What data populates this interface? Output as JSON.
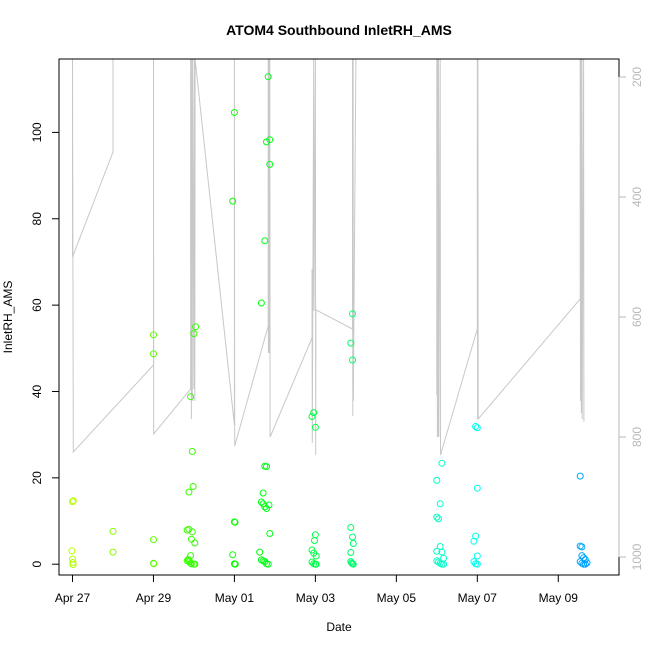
{
  "chart_data": {
    "type": "scatter",
    "title": "ATOM4 Southbound InletRH_AMS",
    "xlabel": "Date",
    "ylabel": "InletRH_AMS",
    "x_range": [
      "2017-04-26T16:00",
      "2017-05-10T12:00"
    ],
    "y_range": [
      -2.5,
      117
    ],
    "y_ticks": [
      0,
      20,
      40,
      60,
      80,
      100
    ],
    "x_ticks": [
      {
        "date": "2017-04-27",
        "label": "Apr 27"
      },
      {
        "date": "2017-04-29",
        "label": "Apr 29"
      },
      {
        "date": "2017-05-01",
        "label": "May 01"
      },
      {
        "date": "2017-05-03",
        "label": "May 03"
      },
      {
        "date": "2017-05-05",
        "label": "May 05"
      },
      {
        "date": "2017-05-07",
        "label": "May 07"
      },
      {
        "date": "2017-05-09",
        "label": "May 09"
      }
    ],
    "secondary_axis": {
      "range": [
        170,
        1030
      ],
      "inverted": true,
      "ticks": [
        200,
        400,
        600,
        800,
        1000
      ],
      "color": "#b8b8b8"
    },
    "grid": false,
    "color_scheme": "points colored by time, yellow-green to blue",
    "points": [
      {
        "x": "2017-04-27T00:00",
        "y": 14.5
      },
      {
        "x": "2017-04-27T00:30",
        "y": 14.7
      },
      {
        "x": "2017-04-26T23:40",
        "y": 3.1
      },
      {
        "x": "2017-04-27T00:00",
        "y": 1.2
      },
      {
        "x": "2017-04-27T00:15",
        "y": 0.4
      },
      {
        "x": "2017-04-27T00:20",
        "y": -0.1
      },
      {
        "x": "2017-04-28T00:00",
        "y": 7.6
      },
      {
        "x": "2017-04-28T00:00",
        "y": 2.8
      },
      {
        "x": "2017-04-29T00:00",
        "y": 53.1
      },
      {
        "x": "2017-04-29T00:00",
        "y": 48.7
      },
      {
        "x": "2017-04-29T00:00",
        "y": 5.7
      },
      {
        "x": "2017-04-29T00:00",
        "y": 0.2
      },
      {
        "x": "2017-04-29T00:10",
        "y": 0.1
      },
      {
        "x": "2017-04-29T20:00",
        "y": 7.9
      },
      {
        "x": "2017-04-29T21:00",
        "y": 8.1
      },
      {
        "x": "2017-04-29T22:00",
        "y": 38.8
      },
      {
        "x": "2017-04-29T21:00",
        "y": 16.7
      },
      {
        "x": "2017-04-29T23:00",
        "y": 26.1
      },
      {
        "x": "2017-04-29T23:30",
        "y": 18.0
      },
      {
        "x": "2017-04-30T00:00",
        "y": 53.4
      },
      {
        "x": "2017-04-30T01:00",
        "y": 55.0
      },
      {
        "x": "2017-04-29T22:30",
        "y": 5.8
      },
      {
        "x": "2017-04-29T23:00",
        "y": 7.5
      },
      {
        "x": "2017-04-30T00:30",
        "y": 4.9
      },
      {
        "x": "2017-04-29T22:00",
        "y": 2.0
      },
      {
        "x": "2017-04-29T20:00",
        "y": 0.8
      },
      {
        "x": "2017-04-29T20:30",
        "y": 1.1
      },
      {
        "x": "2017-04-29T21:00",
        "y": 0.9
      },
      {
        "x": "2017-04-29T21:30",
        "y": 0.6
      },
      {
        "x": "2017-04-29T22:00",
        "y": 0.2
      },
      {
        "x": "2017-04-29T22:30",
        "y": 0.1
      },
      {
        "x": "2017-04-30T00:00",
        "y": 0.0
      },
      {
        "x": "2017-04-30T00:30",
        "y": 0.0
      },
      {
        "x": "2017-05-01T00:00",
        "y": 104.6
      },
      {
        "x": "2017-04-30T23:00",
        "y": 84.1
      },
      {
        "x": "2017-05-01T00:00",
        "y": 9.8
      },
      {
        "x": "2017-05-01T00:20",
        "y": 9.7
      },
      {
        "x": "2017-04-30T23:00",
        "y": 2.2
      },
      {
        "x": "2017-05-01T00:00",
        "y": 0.1
      },
      {
        "x": "2017-05-01T00:15",
        "y": 0.0
      },
      {
        "x": "2017-05-01T00:30",
        "y": 0.0
      },
      {
        "x": "2017-05-01T20:00",
        "y": 112.9
      },
      {
        "x": "2017-05-01T21:00",
        "y": 98.3
      },
      {
        "x": "2017-05-01T19:00",
        "y": 97.8
      },
      {
        "x": "2017-05-01T21:00",
        "y": 92.6
      },
      {
        "x": "2017-05-01T18:00",
        "y": 74.9
      },
      {
        "x": "2017-05-01T16:00",
        "y": 60.5
      },
      {
        "x": "2017-05-01T18:00",
        "y": 22.7
      },
      {
        "x": "2017-05-01T19:00",
        "y": 22.6
      },
      {
        "x": "2017-05-01T17:00",
        "y": 16.5
      },
      {
        "x": "2017-05-01T16:00",
        "y": 14.4
      },
      {
        "x": "2017-05-01T17:00",
        "y": 14.0
      },
      {
        "x": "2017-05-01T18:00",
        "y": 13.3
      },
      {
        "x": "2017-05-01T19:00",
        "y": 12.9
      },
      {
        "x": "2017-05-01T20:30",
        "y": 13.7
      },
      {
        "x": "2017-05-01T21:00",
        "y": 7.1
      },
      {
        "x": "2017-05-01T15:00",
        "y": 2.8
      },
      {
        "x": "2017-05-01T16:00",
        "y": 1.0
      },
      {
        "x": "2017-05-01T17:00",
        "y": 0.8
      },
      {
        "x": "2017-05-01T18:00",
        "y": 0.6
      },
      {
        "x": "2017-05-01T19:00",
        "y": 0.1
      },
      {
        "x": "2017-05-01T20:00",
        "y": 0.0
      },
      {
        "x": "2017-05-02T22:00",
        "y": 34.2
      },
      {
        "x": "2017-05-02T23:00",
        "y": 35.1
      },
      {
        "x": "2017-05-03T00:00",
        "y": 31.7
      },
      {
        "x": "2017-05-03T00:00",
        "y": 6.8
      },
      {
        "x": "2017-05-02T23:30",
        "y": 5.5
      },
      {
        "x": "2017-05-02T22:00",
        "y": 3.3
      },
      {
        "x": "2017-05-02T23:00",
        "y": 2.6
      },
      {
        "x": "2017-05-03T00:30",
        "y": 1.9
      },
      {
        "x": "2017-05-02T22:00",
        "y": 0.5
      },
      {
        "x": "2017-05-02T23:00",
        "y": 0.1
      },
      {
        "x": "2017-05-03T00:00",
        "y": 0.0
      },
      {
        "x": "2017-05-03T00:30",
        "y": 0.0
      },
      {
        "x": "2017-05-03T22:00",
        "y": 58.0
      },
      {
        "x": "2017-05-03T21:00",
        "y": 51.2
      },
      {
        "x": "2017-05-03T22:00",
        "y": 47.3
      },
      {
        "x": "2017-05-03T21:00",
        "y": 8.5
      },
      {
        "x": "2017-05-03T22:00",
        "y": 6.3
      },
      {
        "x": "2017-05-03T22:30",
        "y": 4.8
      },
      {
        "x": "2017-05-03T21:00",
        "y": 2.7
      },
      {
        "x": "2017-05-03T21:00",
        "y": 0.6
      },
      {
        "x": "2017-05-03T21:30",
        "y": 0.3
      },
      {
        "x": "2017-05-03T22:00",
        "y": 0.1
      },
      {
        "x": "2017-05-03T22:30",
        "y": 0.0
      },
      {
        "x": "2017-05-06T03:00",
        "y": 23.4
      },
      {
        "x": "2017-05-06T00:00",
        "y": 19.4
      },
      {
        "x": "2017-05-06T02:00",
        "y": 14.0
      },
      {
        "x": "2017-05-06T00:00",
        "y": 10.9
      },
      {
        "x": "2017-05-06T01:00",
        "y": 10.5
      },
      {
        "x": "2017-05-06T02:00",
        "y": 4.1
      },
      {
        "x": "2017-05-06T00:00",
        "y": 3.0
      },
      {
        "x": "2017-05-06T03:00",
        "y": 2.8
      },
      {
        "x": "2017-05-06T04:00",
        "y": 1.4
      },
      {
        "x": "2017-05-06T00:00",
        "y": 0.8
      },
      {
        "x": "2017-05-06T01:00",
        "y": 0.5
      },
      {
        "x": "2017-05-06T02:00",
        "y": 0.2
      },
      {
        "x": "2017-05-06T03:00",
        "y": 0.0
      },
      {
        "x": "2017-05-06T04:00",
        "y": 0.0
      },
      {
        "x": "2017-05-06T23:00",
        "y": 31.9
      },
      {
        "x": "2017-05-07T00:00",
        "y": 31.6
      },
      {
        "x": "2017-05-07T00:00",
        "y": 17.6
      },
      {
        "x": "2017-05-06T23:00",
        "y": 6.5
      },
      {
        "x": "2017-05-06T22:00",
        "y": 5.3
      },
      {
        "x": "2017-05-07T00:00",
        "y": 1.9
      },
      {
        "x": "2017-05-06T22:00",
        "y": 0.6
      },
      {
        "x": "2017-05-06T23:00",
        "y": 0.1
      },
      {
        "x": "2017-05-07T00:00",
        "y": 0.0
      },
      {
        "x": "2017-05-09T13:00",
        "y": 20.4
      },
      {
        "x": "2017-05-09T13:00",
        "y": 4.2
      },
      {
        "x": "2017-05-09T14:00",
        "y": 4.0
      },
      {
        "x": "2017-05-09T14:00",
        "y": 2.0
      },
      {
        "x": "2017-05-09T15:00",
        "y": 1.5
      },
      {
        "x": "2017-05-09T16:00",
        "y": 1.1
      },
      {
        "x": "2017-05-09T13:00",
        "y": 0.6
      },
      {
        "x": "2017-05-09T14:00",
        "y": 0.2
      },
      {
        "x": "2017-05-09T15:00",
        "y": 0.0
      },
      {
        "x": "2017-05-09T16:00",
        "y": 0.0
      },
      {
        "x": "2017-05-09T17:00",
        "y": 0.3
      }
    ],
    "altitude_series": {
      "color": "#c8c8c8",
      "points": [
        {
          "x": "2017-04-27T00:00",
          "y2": 170
        },
        {
          "x": "2017-04-27T00:00",
          "y2": 500
        },
        {
          "x": "2017-04-28T00:00",
          "y2": 325
        },
        {
          "x": "2017-04-28T00:00",
          "y2": 170
        },
        {
          "x": "2017-04-27T00:00",
          "y2": 170
        },
        {
          "x": "2017-04-27T00:30",
          "y2": 825
        },
        {
          "x": "2017-04-29T00:00",
          "y2": 680
        },
        {
          "x": "2017-04-29T00:00",
          "y2": 170
        },
        {
          "x": "2017-04-29T00:10",
          "y2": 795
        },
        {
          "x": "2017-04-29T22:00",
          "y2": 720
        },
        {
          "x": "2017-04-29T22:00",
          "y2": 170
        },
        {
          "x": "2017-04-29T22:30",
          "y2": 770
        },
        {
          "x": "2017-04-29T22:40",
          "y2": 170
        },
        {
          "x": "2017-04-29T23:00",
          "y2": 740
        },
        {
          "x": "2017-04-29T23:10",
          "y2": 170
        },
        {
          "x": "2017-04-30T00:00",
          "y2": 720
        },
        {
          "x": "2017-04-30T00:10",
          "y2": 170
        },
        {
          "x": "2017-04-30T00:30",
          "y2": 740
        },
        {
          "x": "2017-04-30T00:40",
          "y2": 170
        },
        {
          "x": "2017-05-01T00:00",
          "y2": 780
        },
        {
          "x": "2017-05-01T00:00",
          "y2": 170
        },
        {
          "x": "2017-05-01T00:10",
          "y2": 815
        },
        {
          "x": "2017-05-01T20:00",
          "y2": 615
        },
        {
          "x": "2017-05-01T20:00",
          "y2": 170
        },
        {
          "x": "2017-05-01T20:10",
          "y2": 660
        },
        {
          "x": "2017-05-01T20:30",
          "y2": 170
        },
        {
          "x": "2017-05-01T20:40",
          "y2": 660
        },
        {
          "x": "2017-05-01T21:00",
          "y2": 170
        },
        {
          "x": "2017-05-01T21:10",
          "y2": 800
        },
        {
          "x": "2017-05-02T22:00",
          "y2": 635
        },
        {
          "x": "2017-05-02T22:00",
          "y2": 520
        },
        {
          "x": "2017-05-02T22:10",
          "y2": 810
        },
        {
          "x": "2017-05-02T23:00",
          "y2": 170
        },
        {
          "x": "2017-05-02T23:10",
          "y2": 590
        },
        {
          "x": "2017-05-03T00:00",
          "y2": 170
        },
        {
          "x": "2017-05-03T00:10",
          "y2": 830
        },
        {
          "x": "2017-05-03T00:20",
          "y2": 588
        },
        {
          "x": "2017-05-03T22:00",
          "y2": 620
        },
        {
          "x": "2017-05-03T22:00",
          "y2": 170
        },
        {
          "x": "2017-05-03T22:10",
          "y2": 765
        },
        {
          "x": "2017-05-03T22:20",
          "y2": 170
        },
        {
          "x": "2017-05-03T22:30",
          "y2": 740
        },
        {
          "x": "2017-05-04T00:00",
          "y2": 170
        },
        {
          "x": "2017-05-06T00:00",
          "y2": 170
        },
        {
          "x": "2017-05-06T00:00",
          "y2": 730
        },
        {
          "x": "2017-05-06T00:10",
          "y2": 170
        },
        {
          "x": "2017-05-06T00:20",
          "y2": 800
        },
        {
          "x": "2017-05-06T00:30",
          "y2": 170
        },
        {
          "x": "2017-05-06T00:40",
          "y2": 800
        },
        {
          "x": "2017-05-06T01:00",
          "y2": 170
        },
        {
          "x": "2017-05-06T01:10",
          "y2": 800
        },
        {
          "x": "2017-05-06T02:00",
          "y2": 170
        },
        {
          "x": "2017-05-06T02:10",
          "y2": 830
        },
        {
          "x": "2017-05-07T00:00",
          "y2": 620
        },
        {
          "x": "2017-05-07T00:00",
          "y2": 170
        },
        {
          "x": "2017-05-07T00:10",
          "y2": 770
        },
        {
          "x": "2017-05-07T00:20",
          "y2": 170
        },
        {
          "x": "2017-05-07T00:30",
          "y2": 770
        },
        {
          "x": "2017-05-09T13:00",
          "y2": 570
        },
        {
          "x": "2017-05-09T13:00",
          "y2": 170
        },
        {
          "x": "2017-05-09T13:10",
          "y2": 740
        },
        {
          "x": "2017-05-09T13:30",
          "y2": 170
        },
        {
          "x": "2017-05-09T13:40",
          "y2": 760
        },
        {
          "x": "2017-05-09T14:00",
          "y2": 170
        },
        {
          "x": "2017-05-09T14:10",
          "y2": 770
        },
        {
          "x": "2017-05-09T15:00",
          "y2": 170
        },
        {
          "x": "2017-05-09T15:10",
          "y2": 775
        }
      ]
    }
  }
}
